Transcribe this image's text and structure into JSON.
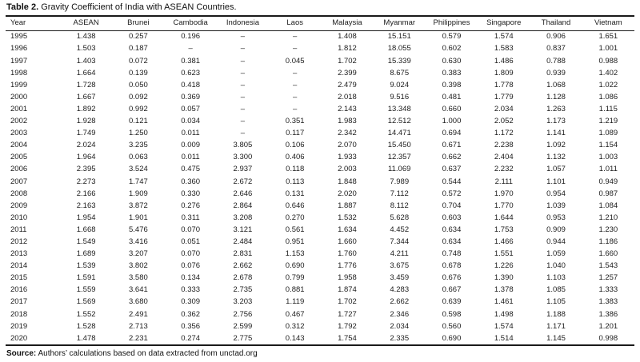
{
  "title": {
    "label": "Table 2.",
    "text": " Gravity Coefficient of India with ASEAN Countries."
  },
  "table": {
    "columns": [
      "Year",
      "ASEAN",
      "Brunei",
      "Cambodia",
      "Indonesia",
      "Laos",
      "Malaysia",
      "Myanmar",
      "Philippines",
      "Singapore",
      "Thailand",
      "Vietnam"
    ],
    "rows": [
      [
        "1995",
        "1.438",
        "0.257",
        "0.196",
        "–",
        "–",
        "1.408",
        "15.151",
        "0.579",
        "1.574",
        "0.906",
        "1.651"
      ],
      [
        "1996",
        "1.503",
        "0.187",
        "–",
        "–",
        "–",
        "1.812",
        "18.055",
        "0.602",
        "1.583",
        "0.837",
        "1.001"
      ],
      [
        "1997",
        "1.403",
        "0.072",
        "0.381",
        "–",
        "0.045",
        "1.702",
        "15.339",
        "0.630",
        "1.486",
        "0.788",
        "0.988"
      ],
      [
        "1998",
        "1.664",
        "0.139",
        "0.623",
        "–",
        "–",
        "2.399",
        "8.675",
        "0.383",
        "1.809",
        "0.939",
        "1.402"
      ],
      [
        "1999",
        "1.728",
        "0.050",
        "0.418",
        "–",
        "–",
        "2.479",
        "9.024",
        "0.398",
        "1.778",
        "1.068",
        "1.022"
      ],
      [
        "2000",
        "1.667",
        "0.092",
        "0.369",
        "–",
        "–",
        "2.018",
        "9.516",
        "0.481",
        "1.779",
        "1.128",
        "1.086"
      ],
      [
        "2001",
        "1.892",
        "0.992",
        "0.057",
        "–",
        "–",
        "2.143",
        "13.348",
        "0.660",
        "2.034",
        "1.263",
        "1.115"
      ],
      [
        "2002",
        "1.928",
        "0.121",
        "0.034",
        "–",
        "0.351",
        "1.983",
        "12.512",
        "1.000",
        "2.052",
        "1.173",
        "1.219"
      ],
      [
        "2003",
        "1.749",
        "1.250",
        "0.011",
        "–",
        "0.117",
        "2.342",
        "14.471",
        "0.694",
        "1.172",
        "1.141",
        "1.089"
      ],
      [
        "2004",
        "2.024",
        "3.235",
        "0.009",
        "3.805",
        "0.106",
        "2.070",
        "15.450",
        "0.671",
        "2.238",
        "1.092",
        "1.154"
      ],
      [
        "2005",
        "1.964",
        "0.063",
        "0.011",
        "3.300",
        "0.406",
        "1.933",
        "12.357",
        "0.662",
        "2.404",
        "1.132",
        "1.003"
      ],
      [
        "2006",
        "2.395",
        "3.524",
        "0.475",
        "2.937",
        "0.118",
        "2.003",
        "11.069",
        "0.637",
        "2.232",
        "1.057",
        "1.011"
      ],
      [
        "2007",
        "2.273",
        "1.747",
        "0.360",
        "2.672",
        "0.113",
        "1.848",
        "7.989",
        "0.544",
        "2.111",
        "1.101",
        "0.949"
      ],
      [
        "2008",
        "2.166",
        "1.909",
        "0.330",
        "2.646",
        "0.131",
        "2.020",
        "7.112",
        "0.572",
        "1.970",
        "0.954",
        "0.987"
      ],
      [
        "2009",
        "2.163",
        "3.872",
        "0.276",
        "2.864",
        "0.646",
        "1.887",
        "8.112",
        "0.704",
        "1.770",
        "1.039",
        "1.084"
      ],
      [
        "2010",
        "1.954",
        "1.901",
        "0.311",
        "3.208",
        "0.270",
        "1.532",
        "5.628",
        "0.603",
        "1.644",
        "0.953",
        "1.210"
      ],
      [
        "2011",
        "1.668",
        "5.476",
        "0.070",
        "3.121",
        "0.561",
        "1.634",
        "4.452",
        "0.634",
        "1.753",
        "0.909",
        "1.230"
      ],
      [
        "2012",
        "1.549",
        "3.416",
        "0.051",
        "2.484",
        "0.951",
        "1.660",
        "7.344",
        "0.634",
        "1.466",
        "0.944",
        "1.186"
      ],
      [
        "2013",
        "1.689",
        "3.207",
        "0.070",
        "2.831",
        "1.153",
        "1.760",
        "4.211",
        "0.748",
        "1.551",
        "1.059",
        "1.660"
      ],
      [
        "2014",
        "1.539",
        "3.802",
        "0.076",
        "2.662",
        "0.690",
        "1.776",
        "3.675",
        "0.678",
        "1.226",
        "1.040",
        "1.543"
      ],
      [
        "2015",
        "1.591",
        "3.580",
        "0.134",
        "2.678",
        "0.799",
        "1.958",
        "3.459",
        "0.676",
        "1.390",
        "1.103",
        "1.257"
      ],
      [
        "2016",
        "1.559",
        "3.641",
        "0.333",
        "2.735",
        "0.881",
        "1.874",
        "4.283",
        "0.667",
        "1.378",
        "1.085",
        "1.333"
      ],
      [
        "2017",
        "1.569",
        "3.680",
        "0.309",
        "3.203",
        "1.119",
        "1.702",
        "2.662",
        "0.639",
        "1.461",
        "1.105",
        "1.383"
      ],
      [
        "2018",
        "1.552",
        "2.491",
        "0.362",
        "2.756",
        "0.467",
        "1.727",
        "2.346",
        "0.598",
        "1.498",
        "1.188",
        "1.386"
      ],
      [
        "2019",
        "1.528",
        "2.713",
        "0.356",
        "2.599",
        "0.312",
        "1.792",
        "2.034",
        "0.560",
        "1.574",
        "1.171",
        "1.201"
      ],
      [
        "2020",
        "1.478",
        "2.231",
        "0.274",
        "2.775",
        "0.143",
        "1.754",
        "2.335",
        "0.690",
        "1.514",
        "1.145",
        "0.998"
      ]
    ]
  },
  "source": {
    "label": "Source:",
    "text": " Authors’ calculations based on data extracted from unctad.org"
  }
}
